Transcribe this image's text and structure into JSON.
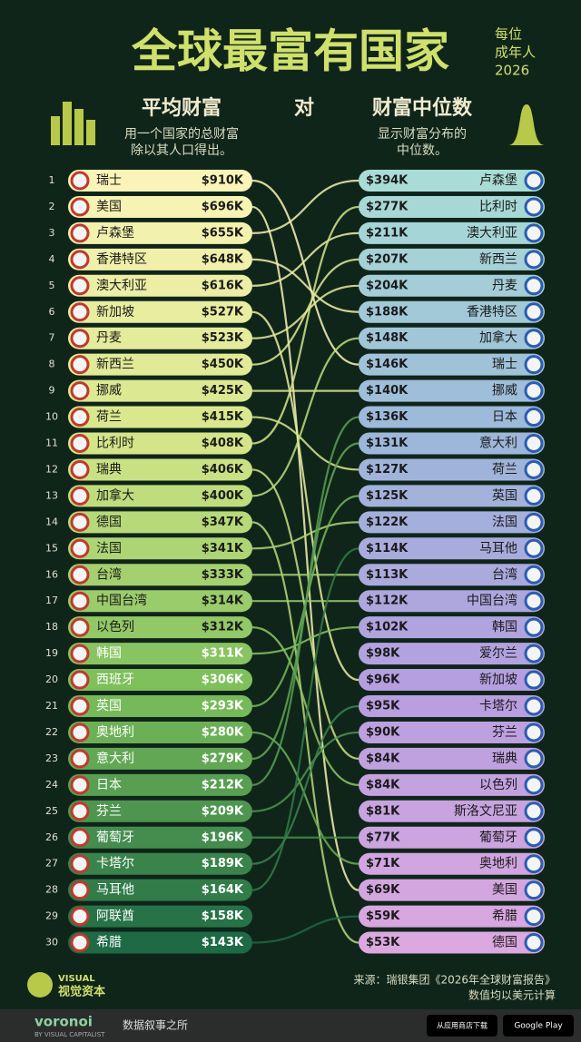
{
  "header": {
    "title": "全球最富有国家",
    "side": [
      "每位",
      "成年人",
      "2026"
    ],
    "left_heading": "平均财富",
    "versus": "对",
    "right_heading": "财富中位数",
    "left_note": [
      "用一个国家的总财富",
      "除以其人口得出。"
    ],
    "right_note": [
      "显示财富分布的",
      "中位数。"
    ]
  },
  "mean_list": [
    {
      "rank": 1,
      "country": "瑞士",
      "value": "$910K"
    },
    {
      "rank": 2,
      "country": "美国",
      "value": "$696K"
    },
    {
      "rank": 3,
      "country": "卢森堡",
      "value": "$655K"
    },
    {
      "rank": 4,
      "country": "香港特区",
      "value": "$648K"
    },
    {
      "rank": 5,
      "country": "澳大利亚",
      "value": "$616K"
    },
    {
      "rank": 6,
      "country": "新加坡",
      "value": "$527K"
    },
    {
      "rank": 7,
      "country": "丹麦",
      "value": "$523K"
    },
    {
      "rank": 8,
      "country": "新西兰",
      "value": "$450K"
    },
    {
      "rank": 9,
      "country": "挪威",
      "value": "$425K"
    },
    {
      "rank": 10,
      "country": "荷兰",
      "value": "$415K"
    },
    {
      "rank": 11,
      "country": "比利时",
      "value": "$408K"
    },
    {
      "rank": 12,
      "country": "瑞典",
      "value": "$406K"
    },
    {
      "rank": 13,
      "country": "加拿大",
      "value": "$400K"
    },
    {
      "rank": 14,
      "country": "德国",
      "value": "$347K"
    },
    {
      "rank": 15,
      "country": "法国",
      "value": "$341K"
    },
    {
      "rank": 16,
      "country": "台湾",
      "value": "$333K"
    },
    {
      "rank": 17,
      "country": "中国台湾",
      "value": "$314K"
    },
    {
      "rank": 18,
      "country": "以色列",
      "value": "$312K"
    },
    {
      "rank": 19,
      "country": "韩国",
      "value": "$311K"
    },
    {
      "rank": 20,
      "country": "西班牙",
      "value": "$306K"
    },
    {
      "rank": 21,
      "country": "英国",
      "value": "$293K"
    },
    {
      "rank": 22,
      "country": "奥地利",
      "value": "$280K"
    },
    {
      "rank": 23,
      "country": "意大利",
      "value": "$279K"
    },
    {
      "rank": 24,
      "country": "日本",
      "value": "$212K"
    },
    {
      "rank": 25,
      "country": "芬兰",
      "value": "$209K"
    },
    {
      "rank": 26,
      "country": "葡萄牙",
      "value": "$196K"
    },
    {
      "rank": 27,
      "country": "卡塔尔",
      "value": "$189K"
    },
    {
      "rank": 28,
      "country": "马耳他",
      "value": "$164K"
    },
    {
      "rank": 29,
      "country": "阿联酋",
      "value": "$158K"
    },
    {
      "rank": 30,
      "country": "希腊",
      "value": "$143K"
    }
  ],
  "median_list": [
    {
      "value": "$394K",
      "country": "卢森堡"
    },
    {
      "value": "$277K",
      "country": "比利时"
    },
    {
      "value": "$211K",
      "country": "澳大利亚"
    },
    {
      "value": "$207K",
      "country": "新西兰"
    },
    {
      "value": "$204K",
      "country": "丹麦"
    },
    {
      "value": "$188K",
      "country": "香港特区"
    },
    {
      "value": "$148K",
      "country": "加拿大"
    },
    {
      "value": "$146K",
      "country": "瑞士"
    },
    {
      "value": "$140K",
      "country": "挪威"
    },
    {
      "value": "$136K",
      "country": "日本"
    },
    {
      "value": "$131K",
      "country": "意大利"
    },
    {
      "value": "$127K",
      "country": "荷兰"
    },
    {
      "value": "$125K",
      "country": "英国"
    },
    {
      "value": "$122K",
      "country": "法国"
    },
    {
      "value": "$114K",
      "country": "马耳他"
    },
    {
      "value": "$113K",
      "country": "台湾"
    },
    {
      "value": "$112K",
      "country": "中国台湾"
    },
    {
      "value": "$102K",
      "country": "韩国"
    },
    {
      "value": "$98K",
      "country": "爱尔兰"
    },
    {
      "value": "$96K",
      "country": "新加坡"
    },
    {
      "value": "$95K",
      "country": "卡塔尔"
    },
    {
      "value": "$90K",
      "country": "芬兰"
    },
    {
      "value": "$84K",
      "country": "瑞典"
    },
    {
      "value": "$84K",
      "country": "以色列"
    },
    {
      "value": "$81K",
      "country": "斯洛文尼亚"
    },
    {
      "value": "$77K",
      "country": "葡萄牙"
    },
    {
      "value": "$71K",
      "country": "奥地利"
    },
    {
      "value": "$69K",
      "country": "美国"
    },
    {
      "value": "$59K",
      "country": "希腊"
    },
    {
      "value": "$53K",
      "country": "德国"
    }
  ],
  "footer": {
    "brand_top": "VISUAL",
    "brand": "视觉资本",
    "source": "来源：瑞银集团《2026年全球财富报告》",
    "note": "数值均以美元计算",
    "app": "voronoi",
    "app_by": "BY VISUAL CAPITALIST",
    "tagline": "数据叙事之所",
    "store1": "从应用商店下载",
    "store2": "Google Play"
  }
}
